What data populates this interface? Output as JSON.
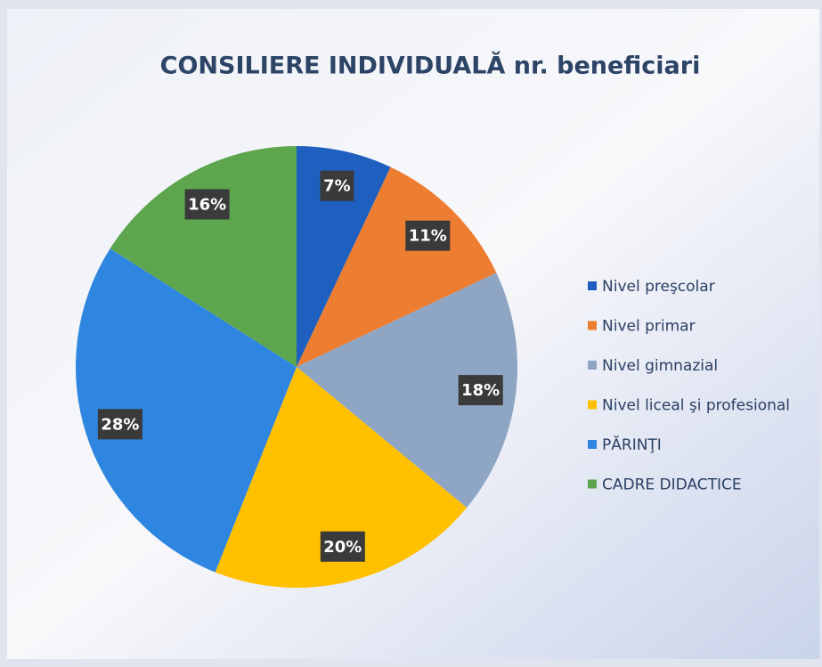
{
  "chart_data": {
    "type": "pie",
    "title": "CONSILIERE INDIVIDUALĂ nr. beneficiari",
    "categories": [
      "Nivel preşcolar",
      "Nivel primar",
      "Nivel gimnazial",
      "Nivel liceal şi profesional",
      "PĂRINŢI",
      "CADRE DIDACTICE"
    ],
    "values": [
      7,
      11,
      18,
      20,
      28,
      16
    ],
    "value_labels": [
      "7%",
      "11%",
      "18%",
      "20%",
      "28%",
      "16%"
    ],
    "colors": [
      "#1f5fbf",
      "#ed7d31",
      "#8ea5c4",
      "#ffc000",
      "#2f86e0",
      "#5ea64e"
    ],
    "legend": "right"
  }
}
